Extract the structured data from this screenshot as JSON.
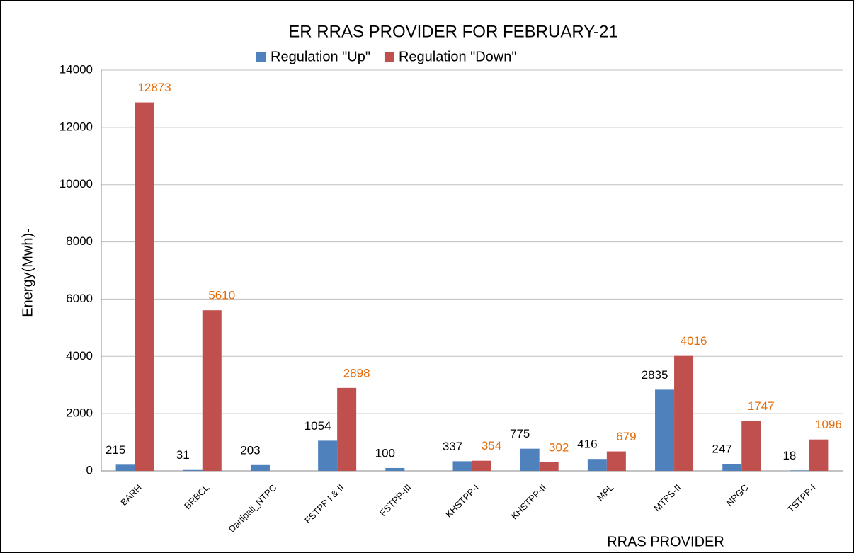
{
  "chart_data": {
    "type": "bar",
    "title": "ER RRAS PROVIDER FOR FEBRUARY-21",
    "x_label": "RRAS PROVIDER",
    "y_label": "Energy(Mwh)-",
    "categories": [
      "BARH",
      "BRBCL",
      "Darlipali_NTPC",
      "FSTPP I & II",
      "FSTPP-III",
      "KHSTPP-I",
      "KHSTPP-II",
      "MPL",
      "MTPS-II",
      "NPGC",
      "TSTPP-I"
    ],
    "series": [
      {
        "name": "Regulation \"Up\"",
        "color": "#4f81bd",
        "label_color": "#000000",
        "values": [
          215,
          31,
          203,
          1054,
          100,
          337,
          775,
          416,
          2835,
          247,
          18
        ]
      },
      {
        "name": "Regulation \"Down\"",
        "color": "#c0504d",
        "label_color": "#e46c0a",
        "values": [
          12873,
          5610,
          null,
          2898,
          null,
          354,
          302,
          679,
          4016,
          1747,
          1096
        ]
      }
    ],
    "ylim": [
      0,
      14000
    ],
    "yticks": [
      0,
      2000,
      4000,
      6000,
      8000,
      10000,
      12000,
      14000
    ],
    "grid": true,
    "legend": "top"
  }
}
